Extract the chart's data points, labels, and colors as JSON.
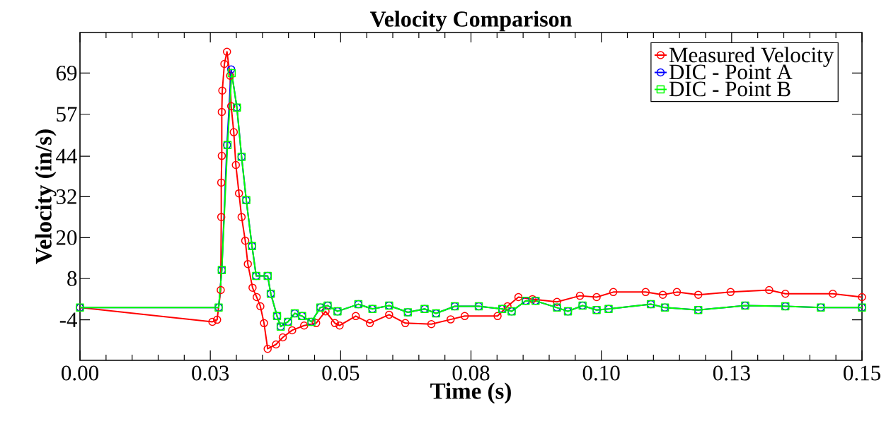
{
  "chart_data": {
    "type": "line",
    "title": "Velocity Comparison",
    "xlabel": "Time (s)",
    "ylabel": "Velocity (in/s)",
    "xlim": [
      0,
      0.15
    ],
    "ylim": [
      -16,
      81
    ],
    "xticks": [
      {
        "value": 0,
        "label": "0.00"
      },
      {
        "value": 0.025,
        "label": "0.03"
      },
      {
        "value": 0.05,
        "label": "0.05"
      },
      {
        "value": 0.075,
        "label": "0.08"
      },
      {
        "value": 0.1,
        "label": "0.10"
      },
      {
        "value": 0.125,
        "label": "0.13"
      },
      {
        "value": 0.15,
        "label": "0.15"
      }
    ],
    "yticks": [
      {
        "value": -4,
        "label": "-4"
      },
      {
        "value": 8.2,
        "label": "8"
      },
      {
        "value": 20.3,
        "label": "20"
      },
      {
        "value": 32.4,
        "label": "32"
      },
      {
        "value": 44.4,
        "label": "44"
      },
      {
        "value": 56.8,
        "label": "57"
      },
      {
        "value": 69.0,
        "label": "69"
      }
    ],
    "grid": false,
    "legend": "top right",
    "line_style": "solid",
    "series": [
      {
        "name": "Measured Velocity",
        "color": "#ff0000",
        "marker": "circle",
        "x": [
          0,
          0.0254,
          0.0263,
          0.027,
          0.0271,
          0.0271,
          0.0272,
          0.0272,
          0.0273,
          0.0277,
          0.0282,
          0.0288,
          0.029,
          0.0295,
          0.0299,
          0.0305,
          0.031,
          0.0317,
          0.0322,
          0.0331,
          0.0339,
          0.0346,
          0.0353,
          0.036,
          0.0376,
          0.0389,
          0.0407,
          0.043,
          0.0453,
          0.0471,
          0.0489,
          0.0498,
          0.0529,
          0.0556,
          0.0593,
          0.0624,
          0.0674,
          0.0711,
          0.0738,
          0.0801,
          0.082,
          0.0841,
          0.0868,
          0.0915,
          0.0959,
          0.0991,
          0.1023,
          0.1085,
          0.1118,
          0.1145,
          0.1186,
          0.1248,
          0.1322,
          0.1353,
          0.1444,
          0.15
        ],
        "values": [
          -0.4,
          -4.6,
          -4.0,
          4.8,
          26.4,
          36.6,
          44.5,
          57.5,
          63.8,
          71.7,
          75.3,
          68.2,
          59.2,
          51.5,
          41.8,
          33.4,
          26.4,
          19.4,
          12.5,
          5.5,
          2.7,
          0,
          -5,
          -12.6,
          -11.3,
          -9.2,
          -7.1,
          -5.7,
          -5,
          -1.5,
          -5,
          -5.7,
          -2.9,
          -5,
          -2.5,
          -5,
          -5.3,
          -3.9,
          -2.9,
          -2.9,
          0,
          2.7,
          2.1,
          1.3,
          3.1,
          2.7,
          4.2,
          4.2,
          3.4,
          4.2,
          3.4,
          4.2,
          4.8,
          3.7,
          3.7,
          2.7
        ]
      },
      {
        "name": "DIC - Point A",
        "color": "#0000ff",
        "marker": "circle",
        "x": [
          0,
          0.0266,
          0.0272,
          0.0282,
          0.029,
          0.0301,
          0.031,
          0.0319,
          0.033,
          0.0338,
          0.036,
          0.0366,
          0.0378,
          0.0385,
          0.0399,
          0.0412,
          0.0426,
          0.0444,
          0.0461,
          0.0475,
          0.0494,
          0.0534,
          0.0561,
          0.0593,
          0.0629,
          0.0661,
          0.0683,
          0.0719,
          0.0765,
          0.081,
          0.0828,
          0.0855,
          0.0874,
          0.0915,
          0.0936,
          0.0964,
          0.0991,
          0.1014,
          0.1095,
          0.1122,
          0.1186,
          0.1276,
          0.1353,
          0.1421,
          0.15
        ],
        "values": [
          -0.4,
          -0.4,
          10.7,
          47.7,
          70.1,
          58.8,
          44.2,
          31.4,
          17.8,
          9.0,
          9.0,
          3.7,
          -2.9,
          -6.0,
          -4.6,
          -2.1,
          -2.9,
          -4.6,
          -0.4,
          0.2,
          -1.5,
          0.6,
          -0.8,
          0.2,
          -1.8,
          -0.8,
          -2.1,
          0,
          0,
          -0.8,
          -1.5,
          1.6,
          1.6,
          -0.4,
          -1.5,
          0.2,
          -1.1,
          -0.8,
          0.6,
          -0.4,
          -1.1,
          0.2,
          0,
          -0.4,
          -0.4
        ]
      },
      {
        "name": "DIC - Point B",
        "color": "#00ff00",
        "marker": "square",
        "x": [
          0,
          0.0266,
          0.0272,
          0.0283,
          0.0291,
          0.0301,
          0.031,
          0.0319,
          0.033,
          0.0338,
          0.036,
          0.0366,
          0.0378,
          0.0385,
          0.0399,
          0.0412,
          0.0426,
          0.0444,
          0.0461,
          0.0475,
          0.0494,
          0.0534,
          0.0561,
          0.0593,
          0.0629,
          0.0661,
          0.0683,
          0.0719,
          0.0765,
          0.081,
          0.0828,
          0.0855,
          0.0874,
          0.0915,
          0.0936,
          0.0964,
          0.0991,
          0.1014,
          0.1095,
          0.1122,
          0.1186,
          0.1276,
          0.1353,
          0.1421,
          0.15
        ],
        "values": [
          -0.4,
          -0.4,
          10.7,
          47.7,
          69.0,
          58.8,
          44.2,
          31.4,
          17.8,
          9.0,
          9.0,
          3.7,
          -2.9,
          -6.0,
          -4.6,
          -2.1,
          -2.9,
          -4.6,
          -0.4,
          0.2,
          -1.5,
          0.6,
          -0.8,
          0.2,
          -1.8,
          -0.8,
          -2.1,
          0,
          0,
          -0.8,
          -1.5,
          1.6,
          1.6,
          -0.4,
          -1.5,
          0.2,
          -1.1,
          -0.8,
          0.6,
          -0.4,
          -1.1,
          0.2,
          0,
          -0.4,
          -0.4
        ]
      }
    ]
  }
}
